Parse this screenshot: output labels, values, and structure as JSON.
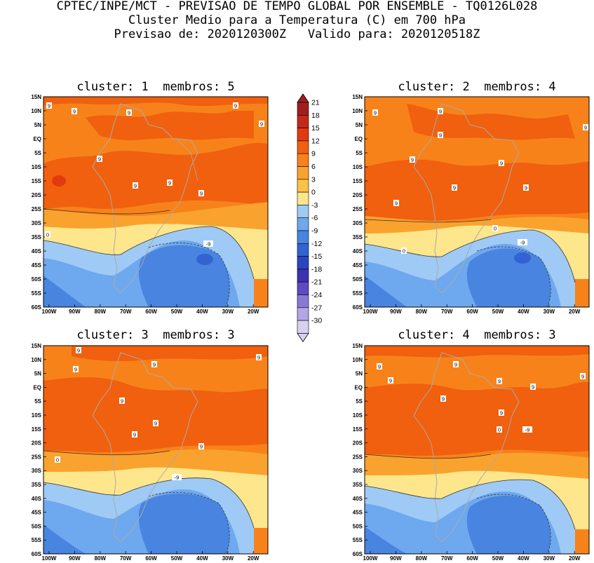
{
  "header": {
    "line1": "CPTEC/INPE/MCT - PREVISAO DE TEMPO GLOBAL POR ENSEMBLE - TQ0126L028",
    "line2": "Cluster Medio para a Temperatura (C) em 700 hPa",
    "line3": "Previsao de: 2020120300Z   Valido para: 2020120518Z"
  },
  "panels": [
    {
      "title": "cluster: 1  membros: 5"
    },
    {
      "title": "cluster: 2  membros: 4"
    },
    {
      "title": "cluster: 3  membros: 3"
    },
    {
      "title": "cluster: 4  membros: 3"
    }
  ],
  "axes": {
    "lat_labels": [
      "15N",
      "10N",
      "5N",
      "EQ",
      "5S",
      "10S",
      "15S",
      "20S",
      "25S",
      "30S",
      "35S",
      "40S",
      "45S",
      "50S",
      "55S",
      "60S"
    ],
    "lon_labels": [
      "100W",
      "90W",
      "80W",
      "70W",
      "60W",
      "50W",
      "40W",
      "30W",
      "20W"
    ]
  },
  "colorbar": {
    "labels": [
      "21",
      "18",
      "15",
      "12",
      "9",
      "6",
      "3",
      "0",
      "-3",
      "-6",
      "-9",
      "-12",
      "-15",
      "-18",
      "-21",
      "-24",
      "-27",
      "-30"
    ],
    "colors": [
      "#a01e1e",
      "#c42818",
      "#e23a10",
      "#f0600e",
      "#f8821a",
      "#faa22e",
      "#fbc24a",
      "#fde68c",
      "#9fcaf5",
      "#6ea8ee",
      "#4884e0",
      "#3462d2",
      "#2b44c0",
      "#3c33b0",
      "#5d4bc4",
      "#8a78d6",
      "#b3a6e6",
      "#d8d0f2"
    ]
  },
  "contour_labels": {
    "p1": [
      "9",
      "9",
      "9",
      "9",
      "9",
      "9",
      "9",
      "9",
      "9",
      "0",
      "-9"
    ],
    "p2": [
      "9",
      "9",
      "9",
      "9",
      "9",
      "9",
      "9",
      "9",
      "9",
      "0",
      "-9",
      "0"
    ],
    "p3": [
      "9",
      "9",
      "9",
      "9",
      "9",
      "9",
      "9",
      "9",
      "0",
      "-9"
    ],
    "p4": [
      "9",
      "9",
      "9",
      "9",
      "9",
      "9",
      "9",
      "9",
      "0",
      "-9"
    ]
  }
}
